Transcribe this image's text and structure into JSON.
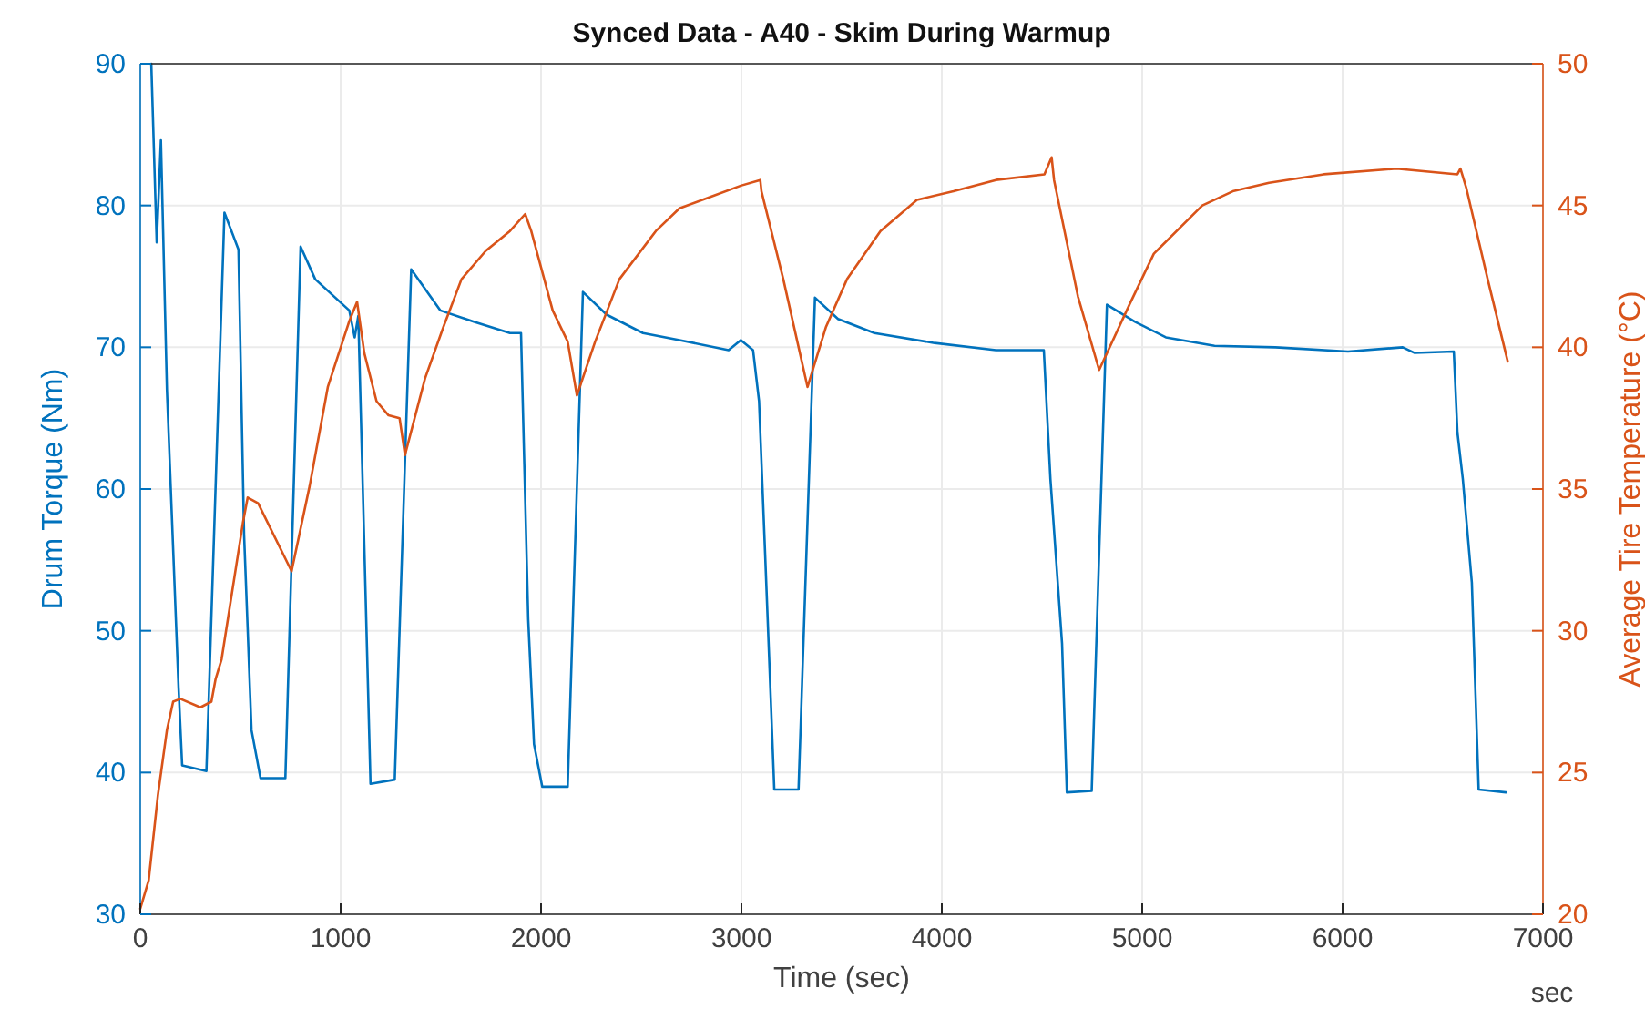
{
  "chart_data": {
    "type": "line",
    "title": "Synced Data - A40 - Skim During Warmup",
    "xlabel": "Time (sec)",
    "ylabel": "Drum Torque (Nm)",
    "y2label": "Average Tire Temperature (°C)",
    "annotations": [
      "sec"
    ],
    "xlim": [
      0,
      7000
    ],
    "xticks": [
      0,
      1000,
      2000,
      3000,
      4000,
      5000,
      6000,
      7000
    ],
    "ylim": [
      30,
      90
    ],
    "yticks": [
      30,
      40,
      50,
      60,
      70,
      80,
      90
    ],
    "y2lim": [
      20,
      50
    ],
    "y2ticks": [
      20,
      25,
      30,
      35,
      40,
      45,
      50
    ],
    "grid": true,
    "series": [
      {
        "color": "#0072bd",
        "x": [
          55,
          82,
          103,
          133,
          191,
          209,
          330,
          420,
          490,
          518,
          555,
          600,
          724,
          800,
          873,
          1043,
          1070,
          1088,
          1149,
          1270,
          1352,
          1497,
          1664,
          1845,
          1900,
          1936,
          1965,
          2006,
          2133,
          2209,
          2327,
          2509,
          2691,
          2936,
          2997,
          3058,
          3088,
          3118,
          3164,
          3285,
          3367,
          3482,
          3664,
          3964,
          4270,
          4509,
          4542,
          4600,
          4624,
          4748,
          4824,
          4964,
          5118,
          5361,
          5664,
          6027,
          6300,
          6360,
          6555,
          6573,
          6600,
          6645,
          6679,
          6815
        ],
        "values": [
          90,
          77.4,
          84.6,
          67,
          46,
          40.5,
          40.1,
          79.5,
          76.9,
          56.8,
          43,
          39.6,
          39.6,
          77.1,
          74.8,
          72.6,
          70.7,
          72.2,
          39.2,
          39.5,
          75.5,
          72.6,
          71.8,
          71,
          71,
          50.8,
          42,
          39,
          39,
          73.9,
          72.3,
          71,
          70.5,
          69.8,
          70.5,
          69.8,
          66.2,
          55.5,
          38.8,
          38.8,
          73.5,
          72,
          71,
          70.3,
          69.8,
          69.8,
          60.7,
          49.1,
          38.6,
          38.7,
          73,
          71.8,
          70.7,
          70.1,
          70,
          69.7,
          70,
          69.6,
          69.7,
          64,
          60.7,
          53.4,
          38.8,
          38.6
        ]
      },
      {
        "color": "#d95319",
        "axis": "y2",
        "x": [
          0,
          42,
          88,
          133,
          164,
          200,
          300,
          355,
          376,
          406,
          512,
          536,
          588,
          755,
          845,
          936,
          1042,
          1082,
          1118,
          1179,
          1239,
          1294,
          1321,
          1421,
          1512,
          1603,
          1724,
          1845,
          1921,
          1951,
          2058,
          2133,
          2179,
          2270,
          2391,
          2573,
          2691,
          2845,
          2997,
          3094,
          3100,
          3209,
          3330,
          3421,
          3527,
          3694,
          3876,
          4058,
          4270,
          4512,
          4548,
          4560,
          4679,
          4785,
          4936,
          5058,
          5300,
          5452,
          5633,
          5906,
          6270,
          6573,
          6588,
          6618,
          6724,
          6824
        ],
        "values": [
          20.2,
          21.2,
          24.2,
          26.5,
          27.5,
          27.6,
          27.3,
          27.5,
          28.3,
          29,
          33.8,
          34.7,
          34.5,
          32.1,
          35.1,
          38.6,
          40.9,
          41.6,
          39.8,
          38.1,
          37.6,
          37.5,
          36.2,
          38.9,
          40.7,
          42.4,
          43.4,
          44.1,
          44.7,
          44.1,
          41.3,
          40.2,
          38.3,
          40.2,
          42.4,
          44.1,
          44.9,
          45.3,
          45.7,
          45.9,
          45.5,
          42.4,
          38.6,
          40.7,
          42.4,
          44.1,
          45.2,
          45.5,
          45.9,
          46.1,
          46.7,
          45.9,
          41.8,
          39.2,
          41.5,
          43.3,
          45,
          45.5,
          45.8,
          46.1,
          46.3,
          46.1,
          46.3,
          45.6,
          42.4,
          39.5
        ]
      }
    ]
  }
}
